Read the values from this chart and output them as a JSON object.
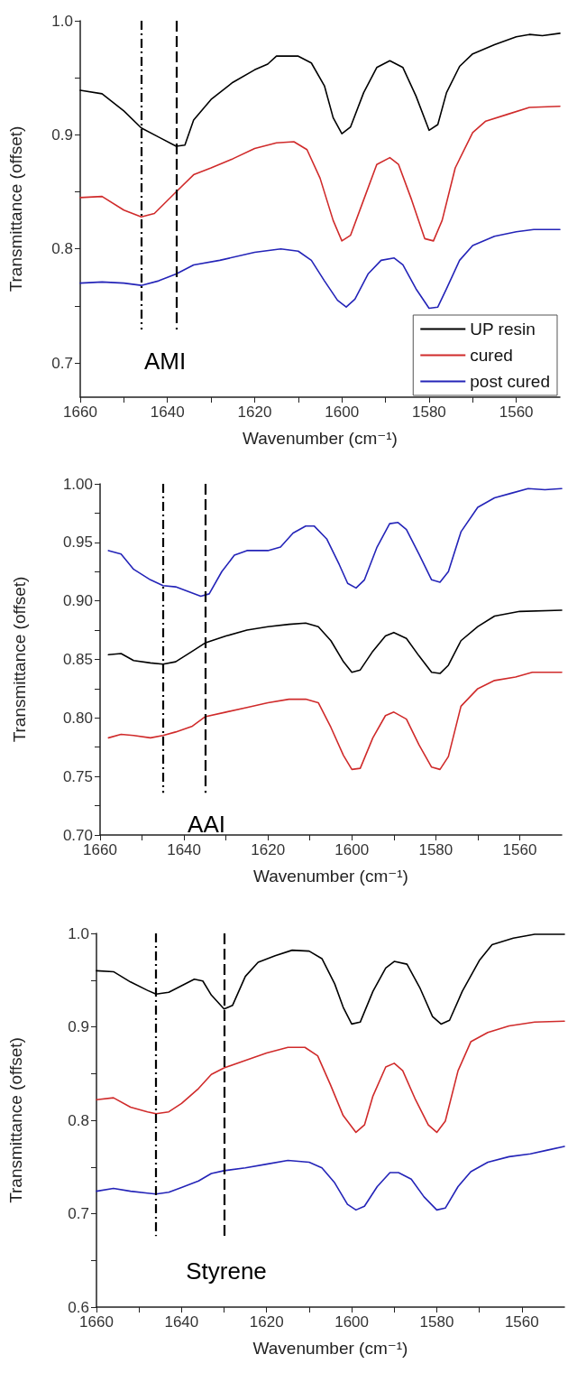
{
  "chart_data": [
    {
      "type": "line",
      "xlabel": "Wavenumber (cm⁻¹)",
      "ylabel": "Transmittance (offset)",
      "xlim": [
        1660,
        1550
      ],
      "ylim": [
        0.67,
        1.0
      ],
      "xticks": [
        1660,
        {
          "value": 1650,
          "label": null
        },
        1640,
        {
          "value": 1630,
          "label": null
        },
        1620,
        {
          "value": 1610,
          "label": null
        },
        1600,
        {
          "value": 1590,
          "label": null
        },
        1580,
        {
          "value": 1570,
          "label": null
        },
        1560
      ],
      "yticks": [
        0.7,
        {
          "value": 0.75,
          "label": null
        },
        0.8,
        {
          "value": 0.85,
          "label": null
        },
        0.9,
        {
          "value": 0.95,
          "label": null
        },
        {
          "value": 1.0,
          "label": "1.0"
        }
      ],
      "grid": false,
      "legend": "bottom right",
      "marker": "none",
      "ref_lines": [
        {
          "axis": "x",
          "value": 1646,
          "line_style": "dashdot",
          "color": "#000000"
        },
        {
          "axis": "x",
          "value": 1638,
          "line_style": "dashed",
          "color": "#000000"
        }
      ],
      "annotations": [
        "AMI"
      ],
      "x": [
        1660,
        1655,
        1650,
        1646,
        1642,
        1638,
        1636,
        1634,
        1630,
        1625,
        1620,
        1617,
        1615,
        1610,
        1607,
        1604,
        1602,
        1600,
        1598,
        1595,
        1592,
        1589,
        1586,
        1583,
        1580,
        1578,
        1576,
        1573,
        1570,
        1565,
        1560,
        1557,
        1554,
        1550
      ],
      "series": [
        {
          "name": "UP resin",
          "color": "#000000",
          "values": [
            0.939,
            0.936,
            0.921,
            0.906,
            0.898,
            0.89,
            0.891,
            0.913,
            0.931,
            0.946,
            0.957,
            0.962,
            0.969,
            0.969,
            0.963,
            0.943,
            0.915,
            0.901,
            0.907,
            0.937,
            0.959,
            0.965,
            0.959,
            0.934,
            0.904,
            0.909,
            0.937,
            0.96,
            0.971,
            0.979,
            0.986,
            0.988,
            0.987,
            0.989
          ]
        },
        {
          "name": "cured",
          "color": "#d02b2b",
          "x": [
            1660,
            1655,
            1650,
            1646,
            1643,
            1638,
            1634,
            1630,
            1625,
            1620,
            1615,
            1611,
            1608,
            1605,
            1602,
            1600,
            1598,
            1595,
            1592,
            1589,
            1587,
            1584,
            1581,
            1579,
            1577,
            1574,
            1570,
            1567,
            1562,
            1557,
            1550
          ],
          "values": [
            0.845,
            0.846,
            0.834,
            0.828,
            0.831,
            0.85,
            0.865,
            0.871,
            0.879,
            0.888,
            0.893,
            0.894,
            0.887,
            0.862,
            0.825,
            0.807,
            0.812,
            0.843,
            0.874,
            0.88,
            0.874,
            0.843,
            0.809,
            0.807,
            0.825,
            0.871,
            0.902,
            0.912,
            0.918,
            0.924,
            0.925
          ]
        },
        {
          "name": "post cured",
          "color": "#2424b8",
          "x": [
            1660,
            1655,
            1650,
            1646,
            1642,
            1638,
            1634,
            1628,
            1620,
            1614,
            1610,
            1607,
            1604,
            1601,
            1599,
            1597,
            1594,
            1591,
            1588,
            1586,
            1583,
            1580,
            1578,
            1576,
            1573,
            1570,
            1565,
            1560,
            1556,
            1550
          ],
          "values": [
            0.77,
            0.771,
            0.77,
            0.768,
            0.772,
            0.778,
            0.786,
            0.79,
            0.797,
            0.8,
            0.798,
            0.79,
            0.772,
            0.755,
            0.749,
            0.756,
            0.778,
            0.79,
            0.792,
            0.786,
            0.765,
            0.748,
            0.749,
            0.765,
            0.79,
            0.803,
            0.811,
            0.815,
            0.817,
            0.817
          ]
        }
      ]
    },
    {
      "type": "line",
      "xlabel": "Wavenumber (cm⁻¹)",
      "ylabel": "Transmittance (offset)",
      "xlim": [
        1660,
        1550
      ],
      "ylim": [
        0.7,
        1.0
      ],
      "xticks": [
        1660,
        {
          "value": 1650,
          "label": null
        },
        1640,
        {
          "value": 1630,
          "label": null
        },
        1620,
        {
          "value": 1610,
          "label": null
        },
        1600,
        {
          "value": 1590,
          "label": null
        },
        1580,
        {
          "value": 1570,
          "label": null
        },
        1560
      ],
      "yticks": [
        {
          "value": 0.7,
          "label": "0.70"
        },
        {
          "value": 0.725,
          "label": null
        },
        {
          "value": 0.75,
          "label": "0.75"
        },
        {
          "value": 0.775,
          "label": null
        },
        {
          "value": 0.8,
          "label": "0.80"
        },
        {
          "value": 0.825,
          "label": null
        },
        {
          "value": 0.85,
          "label": "0.85"
        },
        {
          "value": 0.875,
          "label": null
        },
        {
          "value": 0.9,
          "label": "0.90"
        },
        {
          "value": 0.925,
          "label": null
        },
        {
          "value": 0.95,
          "label": "0.95"
        },
        {
          "value": 0.975,
          "label": null
        },
        {
          "value": 1.0,
          "label": "1.00"
        }
      ],
      "grid": false,
      "legend": false,
      "marker": "none",
      "ref_lines": [
        {
          "axis": "x",
          "value": 1645,
          "line_style": "dashdot",
          "color": "#000000"
        },
        {
          "axis": "x",
          "value": 1635,
          "line_style": "dashed",
          "color": "#000000"
        }
      ],
      "annotations": [
        "AAI"
      ],
      "x": [
        1658,
        1655,
        1652,
        1648,
        1645,
        1642,
        1639,
        1636,
        1634,
        1631,
        1628,
        1625,
        1620,
        1617,
        1614,
        1611,
        1609,
        1606,
        1603,
        1601,
        1599,
        1597,
        1594,
        1591,
        1589,
        1587,
        1584,
        1581,
        1579,
        1577,
        1574,
        1570,
        1566,
        1562,
        1558,
        1554,
        1550
      ],
      "series": [
        {
          "color": "#2424b8",
          "values": [
            0.943,
            0.94,
            0.927,
            0.918,
            0.913,
            0.912,
            0.908,
            0.904,
            0.906,
            0.925,
            0.939,
            0.943,
            0.943,
            0.946,
            0.958,
            0.964,
            0.964,
            0.953,
            0.931,
            0.915,
            0.911,
            0.918,
            0.946,
            0.966,
            0.967,
            0.961,
            0.94,
            0.918,
            0.916,
            0.925,
            0.959,
            0.98,
            0.988,
            0.992,
            0.996,
            0.995,
            0.996
          ]
        },
        {
          "color": "#000000",
          "x": [
            1658,
            1655,
            1652,
            1648,
            1645,
            1642,
            1638,
            1635,
            1630,
            1625,
            1620,
            1615,
            1611,
            1608,
            1605,
            1602,
            1600,
            1598,
            1595,
            1592,
            1590,
            1587,
            1584,
            1581,
            1579,
            1577,
            1574,
            1570,
            1566,
            1560,
            1550
          ],
          "values": [
            0.854,
            0.855,
            0.849,
            0.847,
            0.846,
            0.848,
            0.857,
            0.864,
            0.87,
            0.875,
            0.878,
            0.88,
            0.881,
            0.878,
            0.866,
            0.848,
            0.839,
            0.841,
            0.857,
            0.87,
            0.873,
            0.868,
            0.853,
            0.839,
            0.838,
            0.845,
            0.866,
            0.878,
            0.887,
            0.891,
            0.892
          ]
        },
        {
          "color": "#d02b2b",
          "x": [
            1658,
            1655,
            1652,
            1648,
            1645,
            1642,
            1638,
            1635,
            1630,
            1625,
            1620,
            1615,
            1611,
            1608,
            1605,
            1602,
            1600,
            1598,
            1595,
            1592,
            1590,
            1587,
            1584,
            1581,
            1579,
            1577,
            1574,
            1570,
            1566,
            1561,
            1557,
            1550
          ],
          "values": [
            0.783,
            0.786,
            0.785,
            0.783,
            0.785,
            0.788,
            0.793,
            0.801,
            0.805,
            0.809,
            0.813,
            0.816,
            0.816,
            0.813,
            0.792,
            0.768,
            0.756,
            0.757,
            0.783,
            0.802,
            0.805,
            0.799,
            0.777,
            0.758,
            0.756,
            0.767,
            0.81,
            0.825,
            0.832,
            0.835,
            0.839,
            0.839
          ]
        }
      ]
    },
    {
      "type": "line",
      "xlabel": "Wavenumber (cm⁻¹)",
      "ylabel": "Transmittance (offset)",
      "xlim": [
        1660,
        1550
      ],
      "ylim": [
        0.6,
        1.0
      ],
      "xticks": [
        1660,
        {
          "value": 1650,
          "label": null
        },
        1640,
        {
          "value": 1630,
          "label": null
        },
        1620,
        {
          "value": 1610,
          "label": null
        },
        1600,
        {
          "value": 1590,
          "label": null
        },
        1580,
        {
          "value": 1570,
          "label": null
        },
        1560
      ],
      "yticks": [
        0.6,
        {
          "value": 0.65,
          "label": null
        },
        0.7,
        {
          "value": 0.75,
          "label": null
        },
        0.8,
        {
          "value": 0.85,
          "label": null
        },
        0.9,
        {
          "value": 0.95,
          "label": null
        },
        {
          "value": 1.0,
          "label": "1.0"
        }
      ],
      "grid": false,
      "legend": false,
      "marker": "none",
      "ref_lines": [
        {
          "axis": "x",
          "value": 1646,
          "line_style": "dashdot",
          "color": "#000000"
        },
        {
          "axis": "x",
          "value": 1630,
          "line_style": "dashed",
          "color": "#000000"
        }
      ],
      "annotations": [
        "Styrene"
      ],
      "x": [
        1660,
        1656,
        1652,
        1648,
        1646,
        1643,
        1640,
        1637,
        1635,
        1633,
        1630,
        1628,
        1625,
        1622,
        1618,
        1614,
        1610,
        1607,
        1604,
        1602,
        1600,
        1598,
        1595,
        1592,
        1590,
        1587,
        1584,
        1581,
        1579,
        1577,
        1574,
        1570,
        1567,
        1562,
        1557,
        1550
      ],
      "series": [
        {
          "color": "#000000",
          "values": [
            0.96,
            0.959,
            0.948,
            0.939,
            0.935,
            0.937,
            0.944,
            0.951,
            0.949,
            0.934,
            0.919,
            0.923,
            0.954,
            0.969,
            0.976,
            0.982,
            0.981,
            0.973,
            0.946,
            0.921,
            0.903,
            0.905,
            0.938,
            0.963,
            0.97,
            0.967,
            0.942,
            0.911,
            0.903,
            0.907,
            0.938,
            0.971,
            0.988,
            0.995,
            0.999,
            0.999
          ]
        },
        {
          "color": "#d02b2b",
          "x": [
            1660,
            1656,
            1652,
            1648,
            1646,
            1643,
            1640,
            1636,
            1633,
            1630,
            1625,
            1620,
            1615,
            1611,
            1608,
            1605,
            1602,
            1599,
            1597,
            1595,
            1592,
            1590,
            1588,
            1585,
            1582,
            1580,
            1578,
            1575,
            1572,
            1568,
            1563,
            1557,
            1550
          ],
          "values": [
            0.822,
            0.824,
            0.814,
            0.809,
            0.807,
            0.809,
            0.818,
            0.834,
            0.849,
            0.856,
            0.864,
            0.872,
            0.878,
            0.878,
            0.869,
            0.838,
            0.805,
            0.787,
            0.795,
            0.826,
            0.857,
            0.861,
            0.853,
            0.822,
            0.795,
            0.787,
            0.799,
            0.853,
            0.884,
            0.894,
            0.901,
            0.905,
            0.906
          ]
        },
        {
          "color": "#2424b8",
          "x": [
            1660,
            1656,
            1652,
            1648,
            1646,
            1643,
            1640,
            1636,
            1633,
            1630,
            1625,
            1620,
            1615,
            1610,
            1607,
            1604,
            1601,
            1599,
            1597,
            1594,
            1591,
            1589,
            1586,
            1583,
            1580,
            1578,
            1575,
            1572,
            1568,
            1563,
            1558,
            1554,
            1550
          ],
          "values": [
            0.724,
            0.727,
            0.724,
            0.722,
            0.721,
            0.723,
            0.728,
            0.735,
            0.743,
            0.746,
            0.749,
            0.753,
            0.757,
            0.755,
            0.749,
            0.733,
            0.71,
            0.704,
            0.708,
            0.729,
            0.744,
            0.744,
            0.737,
            0.718,
            0.704,
            0.706,
            0.729,
            0.745,
            0.755,
            0.761,
            0.764,
            0.768,
            0.772
          ]
        }
      ]
    }
  ]
}
